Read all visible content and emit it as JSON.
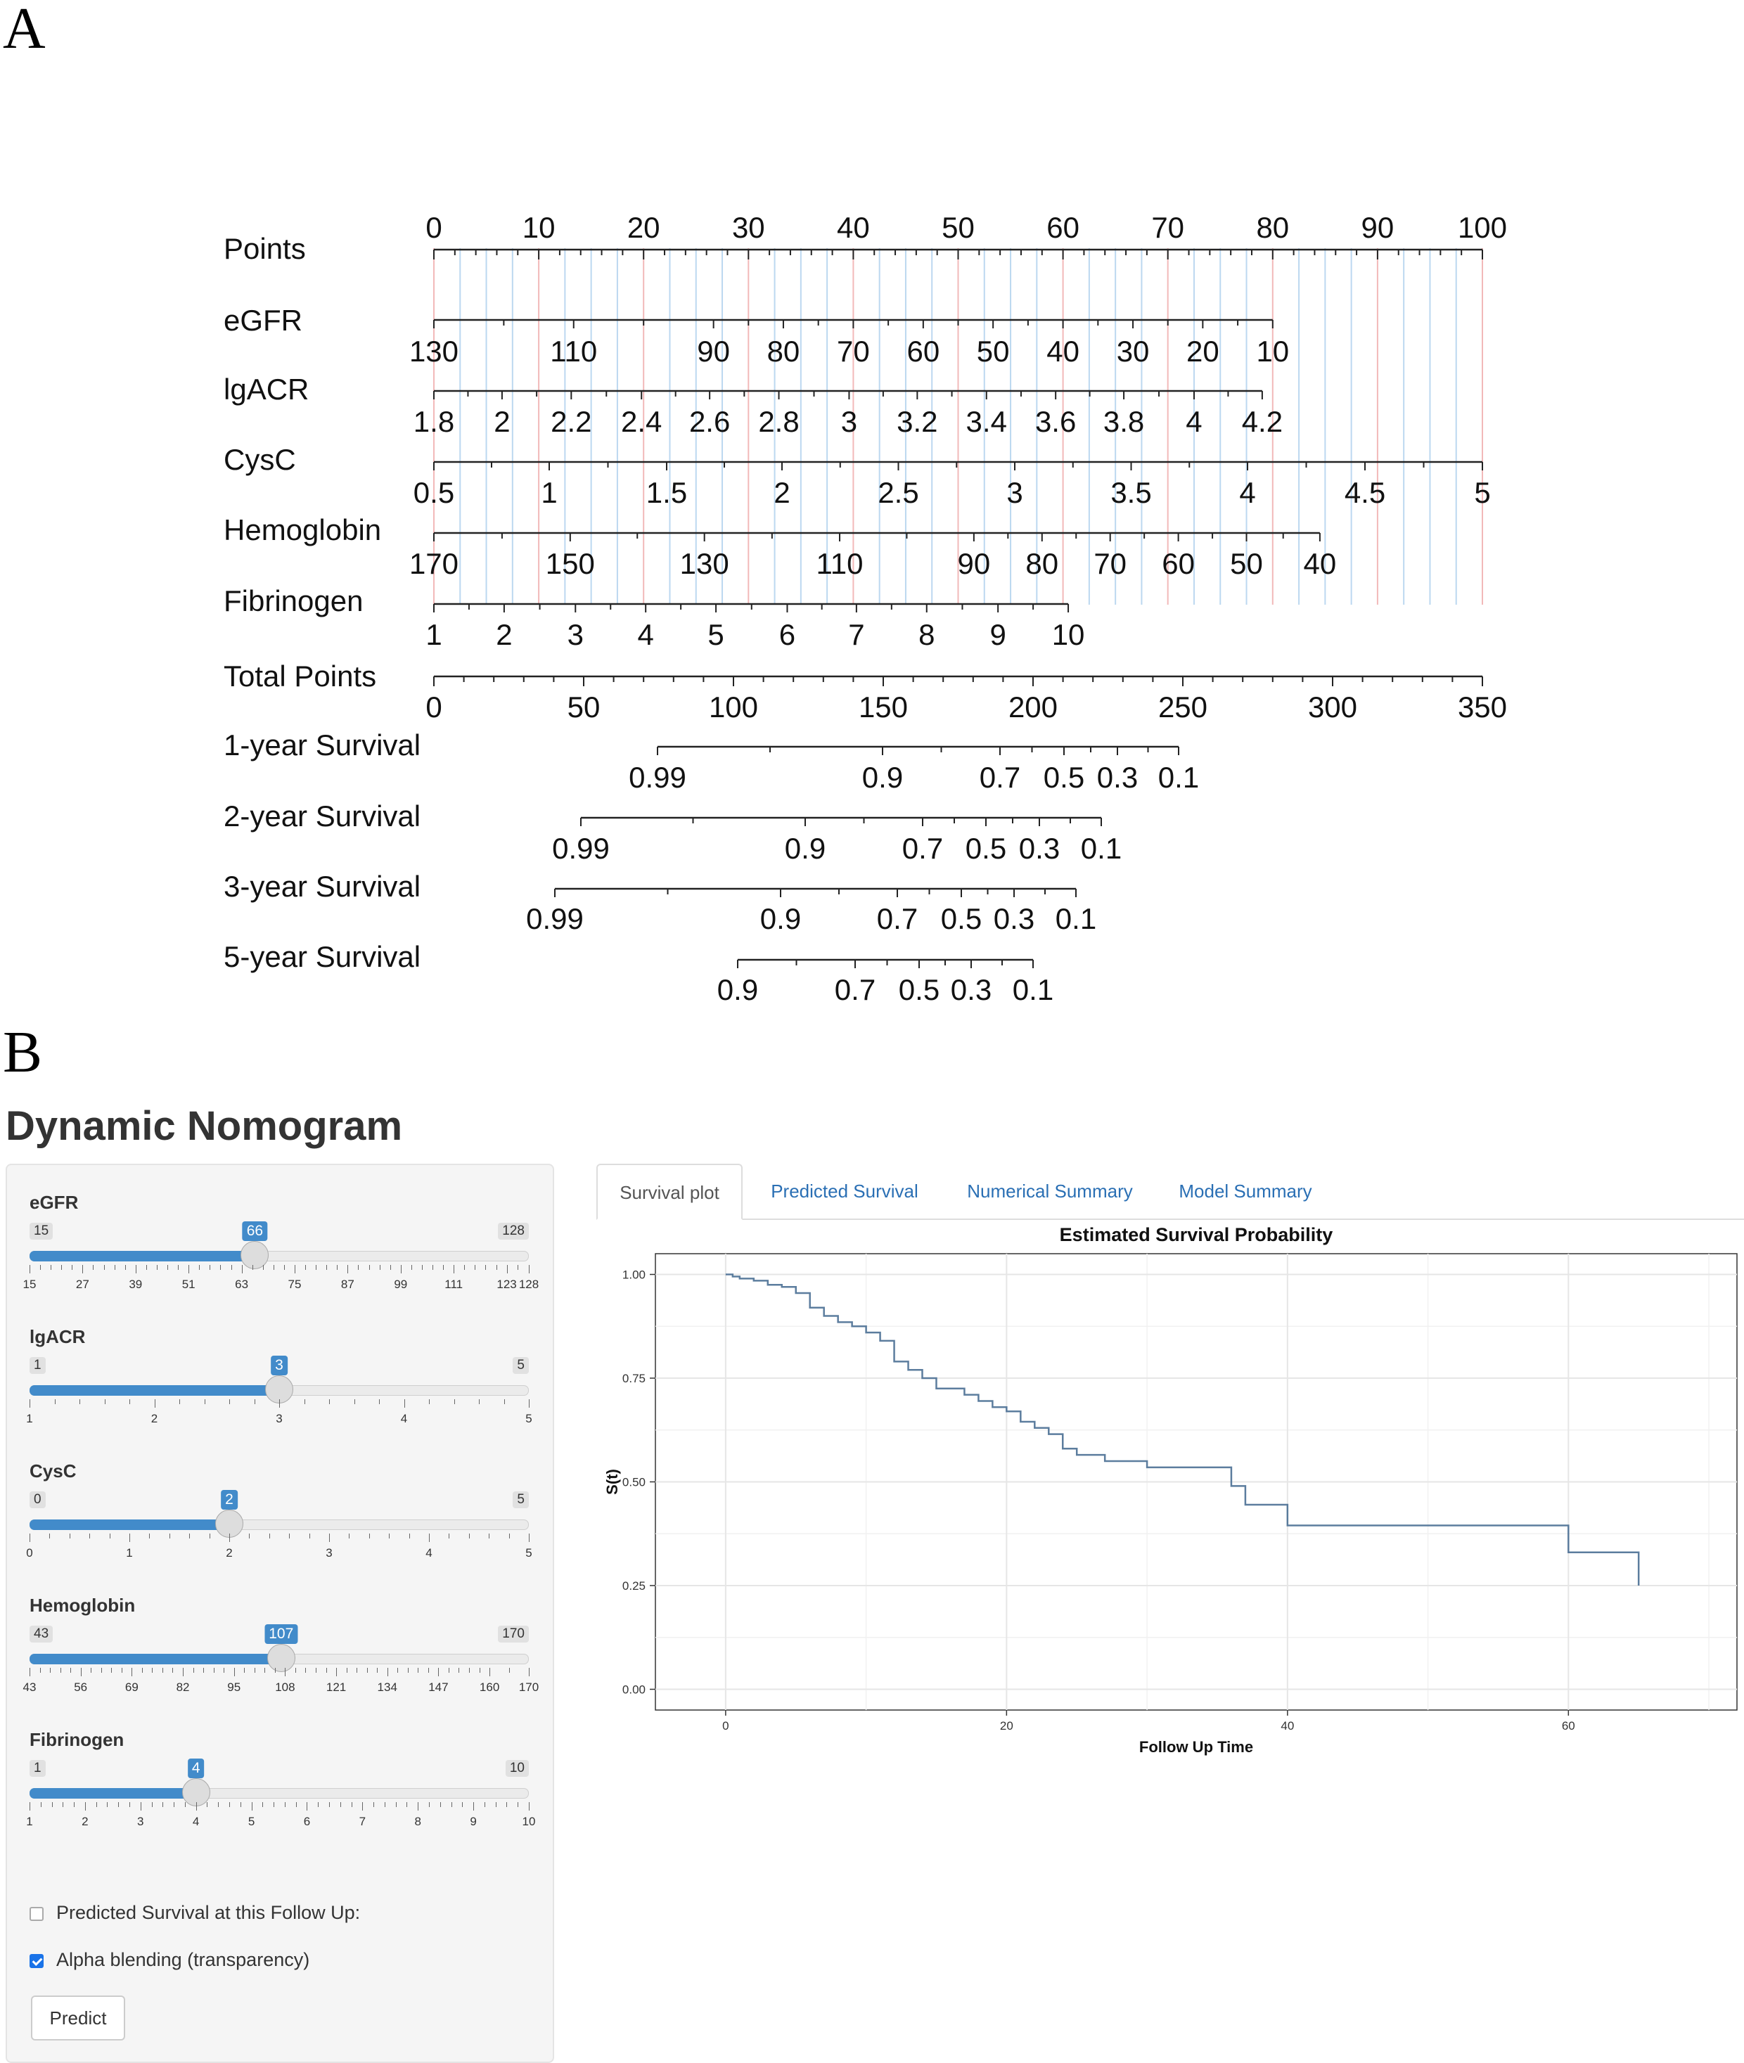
{
  "panels": {
    "a": "A",
    "b": "B"
  },
  "nomogram": {
    "rows": [
      {
        "label": "Points",
        "ticks": [
          "0",
          "10",
          "20",
          "30",
          "40",
          "50",
          "60",
          "70",
          "80",
          "90",
          "100"
        ]
      },
      {
        "label": "eGFR",
        "ticks": [
          "130",
          "110",
          "90",
          "80",
          "70",
          "60",
          "50",
          "40",
          "30",
          "20",
          "10"
        ]
      },
      {
        "label": "lgACR",
        "ticks": [
          "1.8",
          "2",
          "2.2",
          "2.4",
          "2.6",
          "2.8",
          "3",
          "3.2",
          "3.4",
          "3.6",
          "3.8",
          "4",
          "4.2"
        ]
      },
      {
        "label": "CysC",
        "ticks": [
          "0.5",
          "1",
          "1.5",
          "2",
          "2.5",
          "3",
          "3.5",
          "4",
          "4.5",
          "5"
        ]
      },
      {
        "label": "Hemoglobin",
        "ticks": [
          "170",
          "150",
          "130",
          "110",
          "90",
          "80",
          "70",
          "60",
          "50",
          "40"
        ]
      },
      {
        "label": "Fibrinogen",
        "ticks": [
          "1",
          "2",
          "3",
          "4",
          "5",
          "6",
          "7",
          "8",
          "9",
          "10"
        ]
      },
      {
        "label": "Total Points",
        "ticks": [
          "0",
          "50",
          "100",
          "150",
          "200",
          "250",
          "300",
          "350"
        ]
      },
      {
        "label": "1-year Survival",
        "ticks": [
          "0.99",
          "0.9",
          "0.7",
          "0.5",
          "0.3",
          "0.1"
        ]
      },
      {
        "label": "2-year Survival",
        "ticks": [
          "0.99",
          "0.9",
          "0.7",
          "0.5",
          "0.3",
          "0.1"
        ]
      },
      {
        "label": "3-year Survival",
        "ticks": [
          "0.99",
          "0.9",
          "0.7",
          "0.5",
          "0.3",
          "0.1"
        ]
      },
      {
        "label": "5-year Survival",
        "ticks": [
          "0.9",
          "0.7",
          "0.5",
          "0.3",
          "0.1"
        ]
      }
    ]
  },
  "app": {
    "title": "Dynamic Nomogram",
    "sliders": [
      {
        "label": "eGFR",
        "min": "15",
        "max": "128",
        "value": "66",
        "ticks": [
          "15",
          "27",
          "39",
          "51",
          "63",
          "75",
          "87",
          "99",
          "111",
          "123",
          "128"
        ]
      },
      {
        "label": "lgACR",
        "min": "1",
        "max": "5",
        "value": "3",
        "ticks": [
          "1",
          "2",
          "3",
          "4",
          "5"
        ]
      },
      {
        "label": "CysC",
        "min": "0",
        "max": "5",
        "value": "2",
        "ticks": [
          "0",
          "1",
          "2",
          "3",
          "4",
          "5"
        ]
      },
      {
        "label": "Hemoglobin",
        "min": "43",
        "max": "170",
        "value": "107",
        "ticks": [
          "43",
          "56",
          "69",
          "82",
          "95",
          "108",
          "121",
          "134",
          "147",
          "160",
          "170"
        ]
      },
      {
        "label": "Fibrinogen",
        "min": "1",
        "max": "10",
        "value": "4",
        "ticks": [
          "1",
          "2",
          "3",
          "4",
          "5",
          "6",
          "7",
          "8",
          "9",
          "10"
        ]
      }
    ],
    "checkbox_followup": {
      "label": "Predicted Survival at this Follow Up:",
      "checked": false
    },
    "checkbox_alpha": {
      "label": "Alpha blending (transparency)",
      "checked": true
    },
    "predict_label": "Predict",
    "tabs": [
      "Survival plot",
      "Predicted Survival",
      "Numerical Summary",
      "Model Summary"
    ],
    "active_tab": 0
  },
  "chart_data": {
    "type": "line",
    "title": "Estimated Survival Probability",
    "xlabel": "Follow Up Time",
    "ylabel": "S(t)",
    "xlim": [
      -5,
      72
    ],
    "ylim": [
      -0.05,
      1.05
    ],
    "x_ticks": [
      "0",
      "20",
      "40",
      "60"
    ],
    "y_ticks": [
      "0.00",
      "0.25",
      "0.50",
      "0.75",
      "1.00"
    ],
    "series": [
      {
        "name": "S(t)",
        "step": true,
        "color": "#4a6f94",
        "x": [
          0,
          0.5,
          1,
          2,
          3,
          4,
          5,
          6,
          7,
          8,
          9,
          10,
          11,
          12,
          13,
          14,
          15,
          17,
          18,
          19,
          20,
          21,
          22,
          23,
          24,
          25,
          27,
          30,
          36,
          37,
          40,
          60,
          65
        ],
        "y": [
          1.0,
          0.995,
          0.99,
          0.985,
          0.975,
          0.97,
          0.955,
          0.92,
          0.9,
          0.885,
          0.875,
          0.86,
          0.84,
          0.79,
          0.77,
          0.75,
          0.725,
          0.71,
          0.695,
          0.68,
          0.67,
          0.645,
          0.63,
          0.615,
          0.58,
          0.565,
          0.55,
          0.535,
          0.49,
          0.445,
          0.395,
          0.33,
          0.25
        ]
      }
    ]
  }
}
